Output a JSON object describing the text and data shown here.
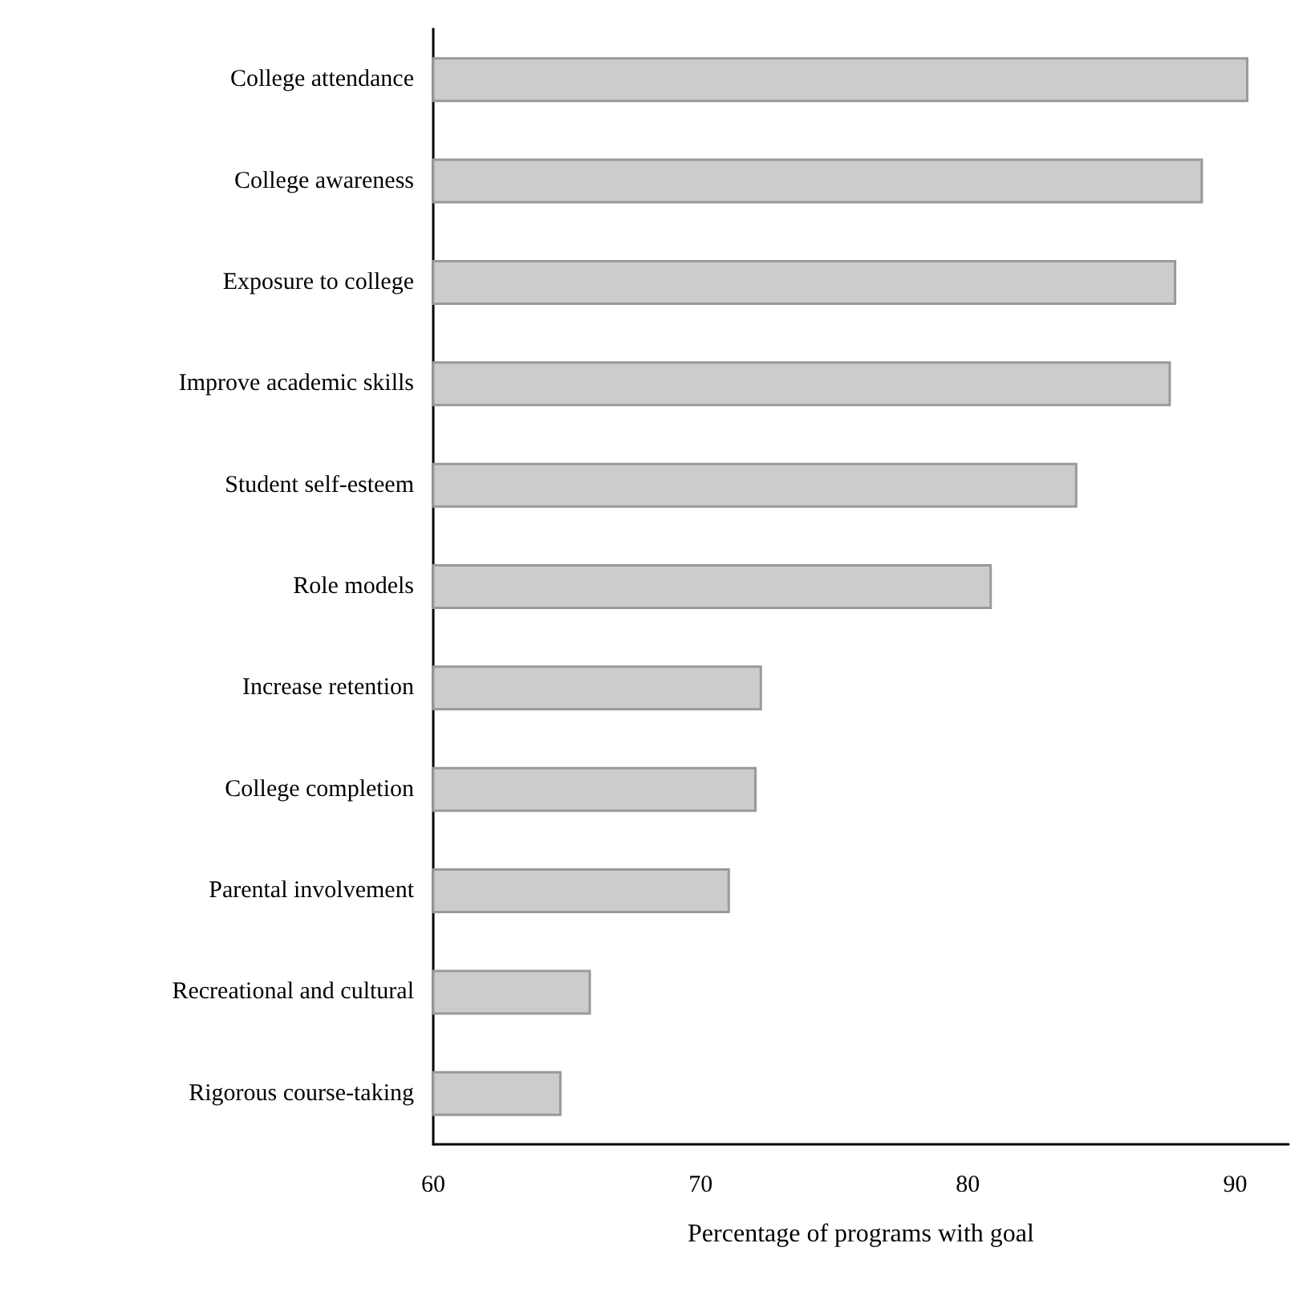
{
  "chart_data": {
    "type": "bar",
    "orientation": "horizontal",
    "xlabel": "Percentage of programs with goal",
    "categories": [
      "College attendance",
      "College awareness",
      "Exposure to college",
      "Improve academic skills",
      "Student self-esteem",
      "Role models",
      "Increase retention",
      "College completion",
      "Parental involvement",
      "Recreational and cultural",
      "Rigorous course-taking"
    ],
    "values": [
      90.5,
      88.8,
      87.8,
      87.6,
      84.1,
      80.9,
      72.3,
      72.1,
      71.1,
      65.9,
      64.8
    ],
    "color": "#cccccc",
    "xlim": [
      60,
      92
    ],
    "xticks": [
      60,
      70,
      80,
      90
    ],
    "grid": false
  }
}
